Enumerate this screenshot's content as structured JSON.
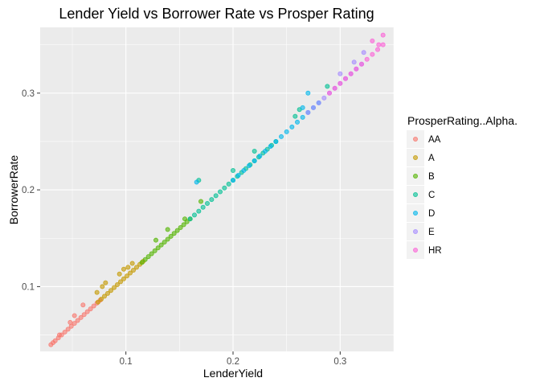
{
  "chart_data": {
    "type": "scatter",
    "title": "Lender Yield vs Borrower Rate vs Prosper Rating",
    "xlabel": "LenderYield",
    "ylabel": "BorrowerRate",
    "xlim": [
      0.02,
      0.35
    ],
    "ylim": [
      0.033,
      0.368
    ],
    "xticks": [
      0.1,
      0.2,
      0.3
    ],
    "yticks": [
      0.1,
      0.2,
      0.3
    ],
    "xtick_labels": [
      "0.1",
      "0.2",
      "0.3"
    ],
    "ytick_labels": [
      "0.1",
      "0.2",
      "0.3"
    ],
    "grid": true,
    "background": "#ebebeb",
    "legend": {
      "title": "ProsperRating..Alpha.",
      "position": "right"
    },
    "series": [
      {
        "name": "AA",
        "color": "#F8766D",
        "points": [
          [
            0.03,
            0.04
          ],
          [
            0.032,
            0.042
          ],
          [
            0.034,
            0.044
          ],
          [
            0.037,
            0.047
          ],
          [
            0.04,
            0.05
          ],
          [
            0.043,
            0.053
          ],
          [
            0.046,
            0.056
          ],
          [
            0.049,
            0.059
          ],
          [
            0.052,
            0.062
          ],
          [
            0.055,
            0.065
          ],
          [
            0.058,
            0.068
          ],
          [
            0.061,
            0.071
          ],
          [
            0.064,
            0.074
          ],
          [
            0.067,
            0.077
          ],
          [
            0.07,
            0.08
          ],
          [
            0.073,
            0.083
          ],
          [
            0.076,
            0.086
          ],
          [
            0.038,
            0.05
          ],
          [
            0.048,
            0.063
          ],
          [
            0.052,
            0.07
          ],
          [
            0.06,
            0.081
          ]
        ]
      },
      {
        "name": "A",
        "color": "#C49A00",
        "points": [
          [
            0.074,
            0.084
          ],
          [
            0.077,
            0.087
          ],
          [
            0.08,
            0.09
          ],
          [
            0.083,
            0.093
          ],
          [
            0.086,
            0.096
          ],
          [
            0.089,
            0.099
          ],
          [
            0.092,
            0.102
          ],
          [
            0.095,
            0.105
          ],
          [
            0.098,
            0.108
          ],
          [
            0.101,
            0.111
          ],
          [
            0.104,
            0.114
          ],
          [
            0.107,
            0.117
          ],
          [
            0.11,
            0.12
          ],
          [
            0.113,
            0.123
          ],
          [
            0.116,
            0.126
          ],
          [
            0.073,
            0.094
          ],
          [
            0.078,
            0.1
          ],
          [
            0.081,
            0.104
          ],
          [
            0.094,
            0.113
          ],
          [
            0.098,
            0.118
          ],
          [
            0.102,
            0.12
          ],
          [
            0.106,
            0.124
          ]
        ]
      },
      {
        "name": "B",
        "color": "#53B400",
        "points": [
          [
            0.115,
            0.125
          ],
          [
            0.118,
            0.128
          ],
          [
            0.121,
            0.131
          ],
          [
            0.124,
            0.134
          ],
          [
            0.127,
            0.137
          ],
          [
            0.13,
            0.14
          ],
          [
            0.133,
            0.143
          ],
          [
            0.136,
            0.146
          ],
          [
            0.139,
            0.149
          ],
          [
            0.142,
            0.152
          ],
          [
            0.145,
            0.155
          ],
          [
            0.148,
            0.158
          ],
          [
            0.151,
            0.161
          ],
          [
            0.154,
            0.164
          ],
          [
            0.157,
            0.167
          ],
          [
            0.16,
            0.17
          ],
          [
            0.128,
            0.148
          ],
          [
            0.139,
            0.159
          ],
          [
            0.17,
            0.188
          ],
          [
            0.155,
            0.17
          ]
        ]
      },
      {
        "name": "C",
        "color": "#00C094",
        "points": [
          [
            0.16,
            0.17
          ],
          [
            0.164,
            0.174
          ],
          [
            0.168,
            0.178
          ],
          [
            0.172,
            0.182
          ],
          [
            0.176,
            0.186
          ],
          [
            0.18,
            0.19
          ],
          [
            0.184,
            0.194
          ],
          [
            0.188,
            0.198
          ],
          [
            0.192,
            0.202
          ],
          [
            0.196,
            0.206
          ],
          [
            0.2,
            0.21
          ],
          [
            0.204,
            0.214
          ],
          [
            0.208,
            0.218
          ],
          [
            0.212,
            0.222
          ],
          [
            0.216,
            0.226
          ],
          [
            0.22,
            0.23
          ],
          [
            0.224,
            0.234
          ],
          [
            0.228,
            0.238
          ],
          [
            0.232,
            0.242
          ],
          [
            0.236,
            0.246
          ],
          [
            0.24,
            0.25
          ],
          [
            0.168,
            0.21
          ],
          [
            0.2,
            0.22
          ],
          [
            0.22,
            0.24
          ],
          [
            0.288,
            0.307
          ],
          [
            0.258,
            0.276
          ],
          [
            0.262,
            0.283
          ]
        ]
      },
      {
        "name": "D",
        "color": "#00B6EB",
        "points": [
          [
            0.2,
            0.21
          ],
          [
            0.205,
            0.215
          ],
          [
            0.21,
            0.22
          ],
          [
            0.215,
            0.225
          ],
          [
            0.22,
            0.23
          ],
          [
            0.225,
            0.235
          ],
          [
            0.23,
            0.24
          ],
          [
            0.235,
            0.245
          ],
          [
            0.24,
            0.25
          ],
          [
            0.245,
            0.255
          ],
          [
            0.25,
            0.26
          ],
          [
            0.255,
            0.265
          ],
          [
            0.26,
            0.27
          ],
          [
            0.265,
            0.275
          ],
          [
            0.27,
            0.28
          ],
          [
            0.275,
            0.285
          ],
          [
            0.28,
            0.29
          ],
          [
            0.166,
            0.208
          ],
          [
            0.265,
            0.285
          ],
          [
            0.27,
            0.3
          ]
        ]
      },
      {
        "name": "E",
        "color": "#A58AFF",
        "points": [
          [
            0.27,
            0.28
          ],
          [
            0.275,
            0.285
          ],
          [
            0.28,
            0.29
          ],
          [
            0.285,
            0.295
          ],
          [
            0.29,
            0.3
          ],
          [
            0.295,
            0.305
          ],
          [
            0.3,
            0.31
          ],
          [
            0.305,
            0.315
          ],
          [
            0.31,
            0.32
          ],
          [
            0.315,
            0.325
          ],
          [
            0.32,
            0.33
          ],
          [
            0.3,
            0.32
          ],
          [
            0.313,
            0.332
          ],
          [
            0.322,
            0.342
          ]
        ]
      },
      {
        "name": "HR",
        "color": "#FB61D7",
        "points": [
          [
            0.29,
            0.3
          ],
          [
            0.295,
            0.305
          ],
          [
            0.3,
            0.31
          ],
          [
            0.305,
            0.315
          ],
          [
            0.31,
            0.32
          ],
          [
            0.315,
            0.325
          ],
          [
            0.32,
            0.33
          ],
          [
            0.325,
            0.335
          ],
          [
            0.33,
            0.34
          ],
          [
            0.335,
            0.345
          ],
          [
            0.34,
            0.35
          ],
          [
            0.34,
            0.36
          ],
          [
            0.33,
            0.354
          ],
          [
            0.336,
            0.35
          ]
        ]
      }
    ]
  }
}
